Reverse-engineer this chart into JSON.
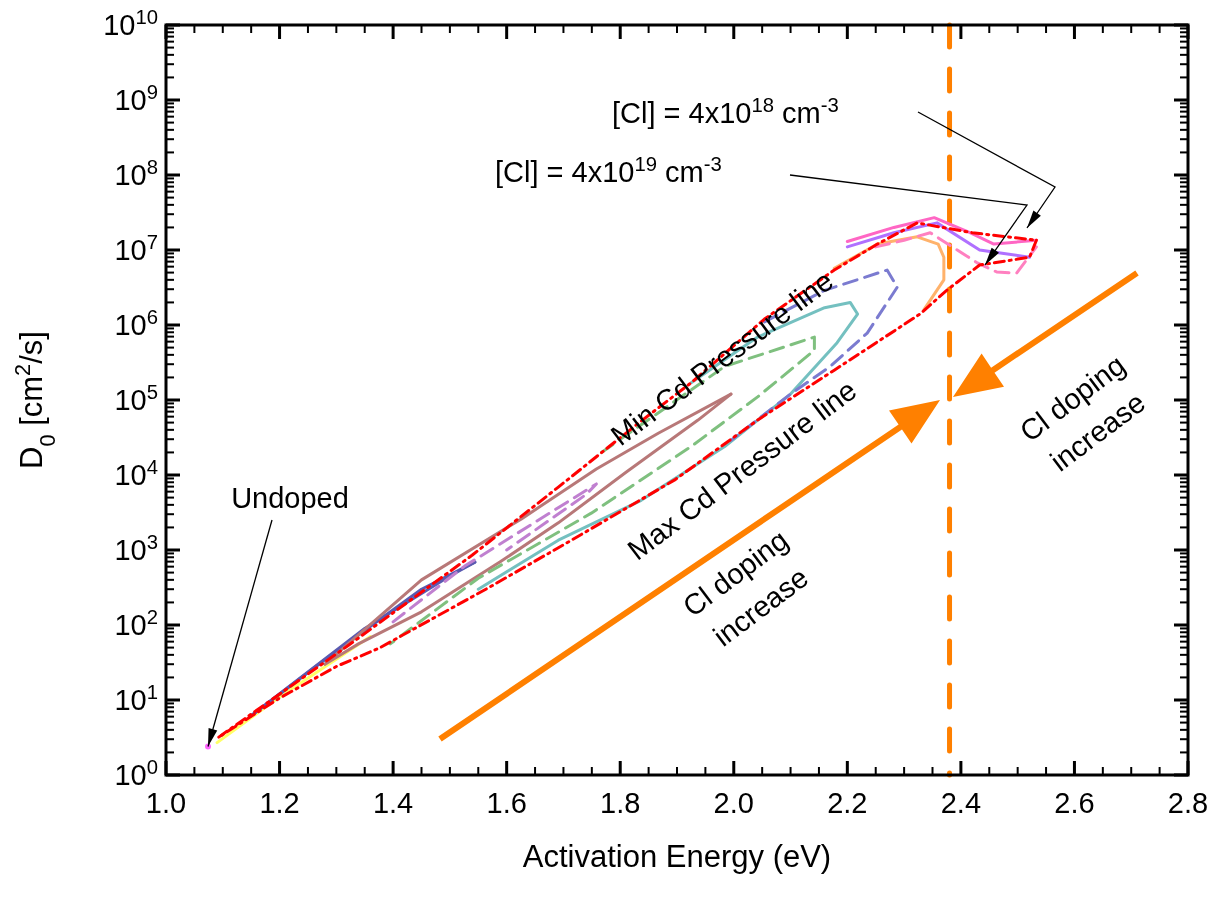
{
  "chart_data": {
    "type": "line",
    "xlabel": "Activation Energy (eV)",
    "ylabel": "D$_{0}$ [cm$^{2}$/s]",
    "log": "y",
    "xlim": [
      1.0,
      2.8
    ],
    "xticks": [
      {
        "value": 1.0,
        "label": "1.0"
      },
      1.2,
      1.4,
      1.6,
      1.8,
      {
        "value": 2.0,
        "label": "2.0"
      },
      2.2,
      2.4,
      2.6,
      2.8
    ],
    "ylim": [
      1,
      10000000000
    ],
    "yticks": [
      {
        "value": 1,
        "label": "10$^{0}$"
      },
      {
        "value": 10,
        "label": "10$^{1}$"
      },
      {
        "value": 100,
        "label": "10$^{2}$"
      },
      {
        "value": 1000,
        "label": "10$^{3}$"
      },
      {
        "value": 10000,
        "label": "10$^{4}$"
      },
      {
        "value": 100000,
        "label": "10$^{5}$"
      },
      {
        "value": 1000000,
        "label": "10$^{6}$"
      },
      {
        "value": 10000000,
        "label": "10$^{7}$"
      },
      {
        "value": 100000000,
        "label": "10$^{8}$"
      },
      {
        "value": 1000000000,
        "label": "10$^{9}$"
      },
      {
        "value": 10000000000,
        "label": "10$^{10}$"
      }
    ],
    "series": [
      {
        "color": "#ffff66",
        "line_style": "solid",
        "x": [
          1.09,
          1.2,
          1.36
        ],
        "values": [
          2.7,
          11,
          70
        ]
      },
      {
        "color": "#5a5ab0",
        "line_style": "solid",
        "x": [
          1.149,
          1.3,
          1.45,
          1.544
        ],
        "values": [
          6.1,
          45,
          300,
          690
        ]
      },
      {
        "color": "#5a5ab0",
        "line_style": "solid",
        "x": [
          1.544,
          1.5,
          1.35,
          1.149
        ],
        "values": [
          690,
          450,
          90,
          6.1
        ]
      },
      {
        "color": "#c080d0",
        "line_style": "dashed",
        "x": [
          1.4,
          1.526,
          1.758,
          1.74,
          1.6
        ],
        "values": [
          110,
          610,
          7600,
          5500,
          1000
        ]
      },
      {
        "color": "#b87878",
        "line_style": "solid",
        "x": [
          1.28,
          1.45,
          1.626,
          1.758,
          1.867,
          1.995
        ],
        "values": [
          30,
          400,
          2600,
          12000,
          36000,
          120000
        ]
      },
      {
        "color": "#b87878",
        "line_style": "solid",
        "x": [
          1.995,
          1.937,
          1.809,
          1.691,
          1.588,
          1.45,
          1.339,
          1.28
        ],
        "values": [
          120000,
          54000,
          10700,
          2300,
          690,
          150,
          56,
          30
        ]
      },
      {
        "color": "#7fc07f",
        "line_style": "dashed",
        "x": [
          1.767,
          1.984,
          2.142,
          2.142,
          2.042,
          1.925,
          1.749,
          1.55,
          1.395
        ],
        "values": [
          20000,
          280000,
          690000,
          460000,
          110000,
          24000,
          3100,
          420,
          56
        ]
      },
      {
        "color": "#74c0c0",
        "line_style": "solid",
        "x": [
          1.925,
          2.042,
          2.16,
          2.205,
          2.218,
          2.182,
          2.1,
          1.984,
          1.837,
          1.691,
          1.55
        ],
        "values": [
          170000,
          690000,
          1700000,
          2000000,
          1400000,
          580000,
          120000,
          24000,
          4600,
          1350,
          300
        ]
      },
      {
        "color": "#7b7bd0",
        "line_style": "dashed",
        "x": [
          2.054,
          2.16,
          2.27,
          2.288,
          2.235,
          2.17,
          2.1,
          1.995
        ],
        "values": [
          1100000,
          2900000,
          5400000,
          3200000,
          780000,
          280000,
          120000,
          29000
        ]
      },
      {
        "color": "#ffb26b",
        "line_style": "solid",
        "x": [
          2.177,
          2.253,
          2.323,
          2.36,
          2.37,
          2.37,
          2.335
        ],
        "values": [
          5700000,
          12000000,
          15000000,
          12000000,
          8000000,
          4000000,
          1600000
        ]
      },
      {
        "color": "#ff80c0",
        "line_style": "dashed",
        "x": [
          2.25,
          2.3,
          2.346,
          2.428,
          2.463,
          2.498,
          2.533
        ],
        "values": [
          11000000,
          13500000,
          17000000,
          6800000,
          5100000,
          4900000,
          11000000
        ]
      },
      {
        "color": "#b070ff",
        "line_style": "solid",
        "x": [
          2.2,
          2.282,
          2.358,
          2.433,
          2.521
        ],
        "values": [
          11000000,
          17000000,
          23000000,
          10000000,
          8000000
        ]
      },
      {
        "color": "#ff66c4",
        "line_style": "solid",
        "x": [
          2.2,
          2.282,
          2.353,
          2.416,
          2.458,
          2.533
        ],
        "values": [
          13000000,
          20000000,
          27000000,
          17000000,
          12000000,
          13500000
        ]
      },
      {
        "color": "#ff0000",
        "line_style": "dashdot",
        "x": [
          1.093,
          1.319,
          1.539,
          1.691,
          1.832,
          1.925,
          2.054,
          2.177,
          2.253,
          2.323,
          2.42,
          2.533
        ],
        "values": [
          3.2,
          52,
          850,
          6900,
          49000,
          170000,
          1200000,
          5400000,
          12000000,
          23000000,
          17000000,
          13500000
        ]
      },
      {
        "color": "#ff0000",
        "line_style": "dashdot",
        "x": [
          2.533,
          2.521,
          2.433,
          2.375,
          2.328,
          2.177,
          2.042,
          1.896,
          1.714,
          1.57,
          1.375,
          1.3,
          1.2,
          1.093
        ],
        "values": [
          13500000,
          8000000,
          6300000,
          2900000,
          1400000,
          250000,
          54000,
          8600,
          1350,
          320,
          49,
          28,
          10.6,
          3.2
        ]
      },
      {
        "type": "scatter",
        "marker": "circle",
        "color": "#ff66ff",
        "x": [
          1.074
        ],
        "values": [
          2.4
        ]
      }
    ],
    "ref_lines": [
      {
        "axis": "x",
        "value": 2.38,
        "color": "#ff8000",
        "line_style": "dashed"
      }
    ],
    "annotations": [
      "[Cl] = 4x10$^{18}$ cm$^{-3}$",
      "[Cl] = 4x10$^{19}$ cm$^{-3}$",
      "Min Cd Pressure line",
      "Max Cd Pressure line",
      {
        "text": "Undoped",
        "x": 1.074,
        "y": 2.4
      },
      "Cl doping\nincrease",
      "Cl doping\nincrease"
    ]
  }
}
